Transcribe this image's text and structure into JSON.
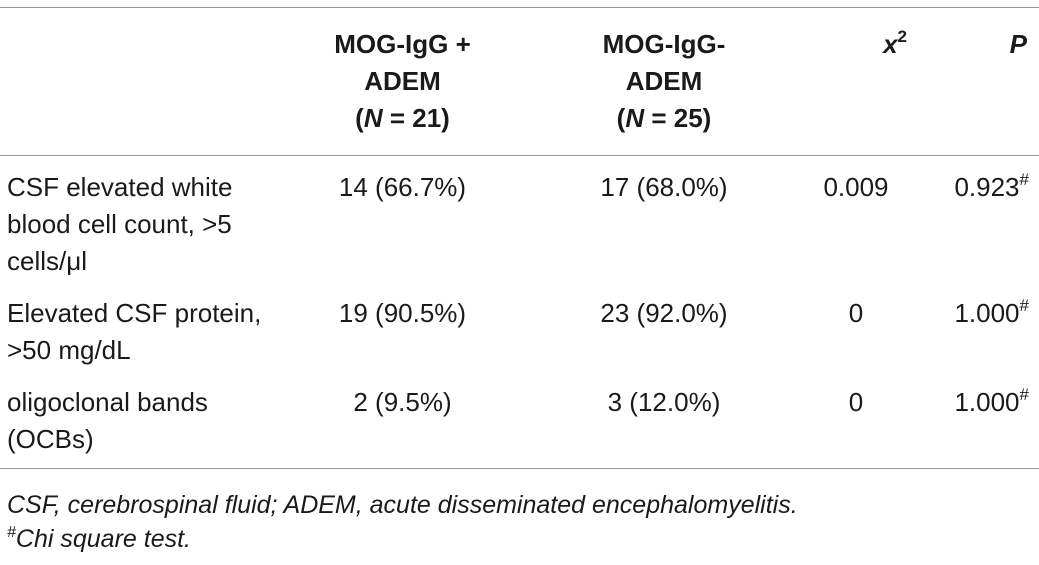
{
  "header": {
    "col_label": "",
    "col2": {
      "line1": "MOG-IgG +",
      "line2": "ADEM",
      "n_prefix": "(",
      "n_var": "N",
      "n_suffix": " = 21)"
    },
    "col3": {
      "line1": "MOG-IgG-",
      "line2": "ADEM",
      "n_prefix": "(",
      "n_var": "N",
      "n_suffix": " = 25)"
    },
    "col4": {
      "var": "x",
      "sup": "2"
    },
    "col5": {
      "var": "P"
    }
  },
  "rows": [
    {
      "label": "CSF elevated white blood cell count, >5 cells/μl",
      "pos": "14 (66.7%)",
      "neg": "17 (68.0%)",
      "chi2": "0.009",
      "p": "0.923",
      "p_mark": "#"
    },
    {
      "label": "Elevated CSF protein, >50 mg/dL",
      "pos": "19 (90.5%)",
      "neg": "23 (92.0%)",
      "chi2": "0",
      "p": "1.000",
      "p_mark": "#"
    },
    {
      "label": "oligoclonal bands (OCBs)",
      "pos": "2 (9.5%)",
      "neg": "3 (12.0%)",
      "chi2": "0",
      "p": "1.000",
      "p_mark": "#"
    }
  ],
  "footnotes": {
    "abbreviations": "CSF, cerebrospinal fluid; ADEM, acute disseminated encephalomyelitis.",
    "test_mark": "#",
    "test_text": "Chi square test."
  }
}
